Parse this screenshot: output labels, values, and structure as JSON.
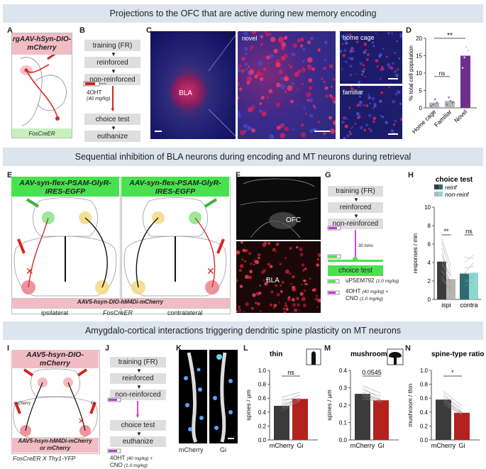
{
  "banners": {
    "b1": "Projections to the OFC that are active during new memory encoding",
    "b2": "Sequential inhibition of BLA neurons during encoding and MT neurons during retrieval",
    "b3": "Amygdalo-cortical interactions triggering dendritic spine plasticity on MT neurons"
  },
  "panels": {
    "A": "A",
    "B": "B",
    "C": "C",
    "D": "D",
    "E": "E",
    "F": "F",
    "G": "G",
    "H": "H",
    "I": "I",
    "J": "J",
    "K": "K",
    "L": "L",
    "M": "M",
    "N": "N"
  },
  "panelA": {
    "virus": "rgAAV-hSyn-DIO-mCherry",
    "mouse": "FosCreER"
  },
  "flowB": {
    "s1": "training (FR)",
    "s2": "reinforced",
    "s3": "non-reinforced",
    "drug": "4OHT",
    "dose": "(40 mg/kg)",
    "s4": "choice test",
    "s5": "euthanize"
  },
  "panelC": {
    "region": "BLA",
    "novel": "novel",
    "home": "home cage",
    "familiar": "familiar"
  },
  "panelE": {
    "virus": "AAV-syn-flex-PSAM-GlyR-IRES-EGFP",
    "virus2": "AAV5-hsyn-DIO-hM4Di-mCherry",
    "ipsi": "ipsilateral",
    "mouse": "FosCreER",
    "contra": "contralateral"
  },
  "panelF": {
    "ofc": "OFC",
    "bla": "BLA"
  },
  "flowG": {
    "s1": "training (FR)",
    "s2": "reinforced",
    "s3": "non-reinforced",
    "wait": "30 mins",
    "s4": "choice test",
    "drug1": "uPSEM792",
    "dose1": "(1.0 mg/kg)",
    "drug2": "4OHT",
    "dose2": "(40 mg/kg) +",
    "drug3": "CNO",
    "dose3": "(1.0 mg/kg)"
  },
  "panelI": {
    "virus": "AAV5-hsyn-DIO-mCherry",
    "left": "mCherry",
    "right": "Gi",
    "virus2": "AAV5-hsyn-hM4Di-mCherry",
    "virus2b": "or mCherry",
    "mouse": "FosCreER X Thy1-YFP"
  },
  "flowJ": {
    "s1": "training (FR)",
    "s2": "reinforced",
    "s3": "non-reinforced",
    "s4": "choice test",
    "s5": "euthanize",
    "drug1": "4OHT",
    "dose1": "(40 mg/kg) +",
    "drug2": "CNO",
    "dose2": "(1.0 mg/kg)"
  },
  "panelK": {
    "l1": "mCherry",
    "l2": "Gi"
  },
  "colors": {
    "dark": "#3b3b3b",
    "red": "#b3221d",
    "purple": "#6c2f8f",
    "teal": "#8ed7cf",
    "tealDark": "#2c6b74",
    "gray": "#b5b5b5",
    "green": "#49e14f",
    "pink": "#f2bcc4",
    "banner": "#dce5ee"
  },
  "chart_data": [
    {
      "id": "D",
      "type": "bar",
      "ylabel": "% total cell population",
      "ylim": [
        0,
        20
      ],
      "yticks": [
        0,
        5,
        10,
        15,
        20
      ],
      "categories": [
        "Home cage",
        "Familiar",
        "Novel"
      ],
      "values": [
        1.5,
        2.0,
        15.0
      ],
      "points": [
        [
          0.5,
          1.0,
          2.5,
          1.5
        ],
        [
          1.0,
          3.0,
          2.0,
          1.5
        ],
        [
          11.5,
          14.5,
          17.5,
          16.5
        ]
      ],
      "sig": [
        {
          "label": "ns",
          "from": 0,
          "to": 1
        },
        {
          "label": "**",
          "from": 0,
          "to": 2
        }
      ]
    },
    {
      "id": "H",
      "type": "bar",
      "title": "choice test",
      "ylabel": "responses / min",
      "xlabel_groups": [
        "ispi",
        "contra"
      ],
      "ylim": [
        0,
        10
      ],
      "yticks": [
        0,
        2,
        4,
        6,
        8,
        10
      ],
      "series": [
        {
          "name": "reinf",
          "values": [
            4.1,
            2.8
          ]
        },
        {
          "name": "non-reinf",
          "values": [
            2.2,
            2.9
          ]
        }
      ],
      "sig": [
        "**",
        "ns"
      ]
    },
    {
      "id": "L",
      "type": "bar",
      "title": "thin",
      "ylabel": "spines / µm",
      "categories": [
        "mCherry",
        "Gi"
      ],
      "ylim": [
        0,
        1.0
      ],
      "yticks": [
        0.0,
        0.2,
        0.4,
        0.6,
        0.8,
        1.0
      ],
      "yticklabels": [
        "0.0",
        "0.2",
        "0.4",
        "0.6",
        "0.8",
        "1.0"
      ],
      "values": [
        0.49,
        0.59
      ],
      "sig": "ns"
    },
    {
      "id": "M",
      "type": "bar",
      "title": "mushroom",
      "ylabel": "spines / µm",
      "categories": [
        "mCherry",
        "Gi"
      ],
      "ylim": [
        0,
        0.4
      ],
      "yticks": [
        0.0,
        0.1,
        0.2,
        0.3,
        0.4
      ],
      "yticklabels": [
        "0.0",
        "0.1",
        "0.2",
        "0.3",
        "0.4"
      ],
      "values": [
        0.265,
        0.228
      ],
      "sig": "0.0545"
    },
    {
      "id": "N",
      "type": "bar",
      "title": "spine-type ratio",
      "ylabel": "mushroom / thin",
      "categories": [
        "mCherry",
        "Gi"
      ],
      "ylim": [
        0,
        1.0
      ],
      "yticks": [
        0.0,
        0.2,
        0.4,
        0.6,
        0.8,
        1.0
      ],
      "yticklabels": [
        "0.0",
        "0.2",
        "0.4",
        "0.6",
        "0.8",
        "1.0"
      ],
      "values": [
        0.58,
        0.39
      ],
      "sig": "*"
    }
  ]
}
